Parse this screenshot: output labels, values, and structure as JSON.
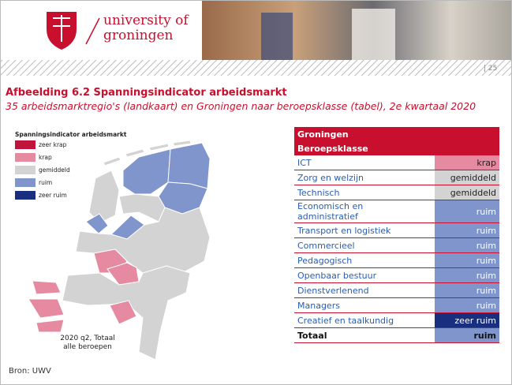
{
  "header": {
    "logo_line1": "university of",
    "logo_line2": "groningen",
    "page_number": "| 25"
  },
  "title": "Afbeelding 6.2 Spanningsindicator arbeidsmarkt",
  "subtitle": "35 arbeidsmarktregio's (landkaart) en Groningen naar beroepsklasse (tabel), 2e kwartaal 2020",
  "map": {
    "legend_title": "Spanningsindicator arbeidsmarkt",
    "legend": [
      {
        "label": "zeer krap",
        "color": "#c0143c"
      },
      {
        "label": "krap",
        "color": "#e58aa0"
      },
      {
        "label": "gemiddeld",
        "color": "#d3d3d3"
      },
      {
        "label": "ruim",
        "color": "#7f95cc"
      },
      {
        "label": "zeer ruim",
        "color": "#1a2e80"
      }
    ],
    "caption_line1": "2020 q2, Totaal",
    "caption_line2": "alle beroepen"
  },
  "table": {
    "header": [
      "Groningen",
      "Beroepsklasse"
    ],
    "rows": [
      [
        "ICT",
        "krap"
      ],
      [
        "Zorg en welzijn",
        "gemiddeld"
      ],
      [
        "Technisch",
        "gemiddeld"
      ],
      [
        "Economisch en administratief",
        "ruim"
      ],
      [
        "Transport en logistiek",
        "ruim"
      ],
      [
        "Commercieel",
        "ruim"
      ],
      [
        "Pedagogisch",
        "ruim"
      ],
      [
        "Openbaar bestuur",
        "ruim"
      ],
      [
        "Dienstverlenend",
        "ruim"
      ],
      [
        "Managers",
        "ruim"
      ],
      [
        "Creatief en taalkundig",
        "zeer ruim"
      ]
    ],
    "total": [
      "Totaal",
      "ruim"
    ]
  },
  "source": "Bron: UWV"
}
